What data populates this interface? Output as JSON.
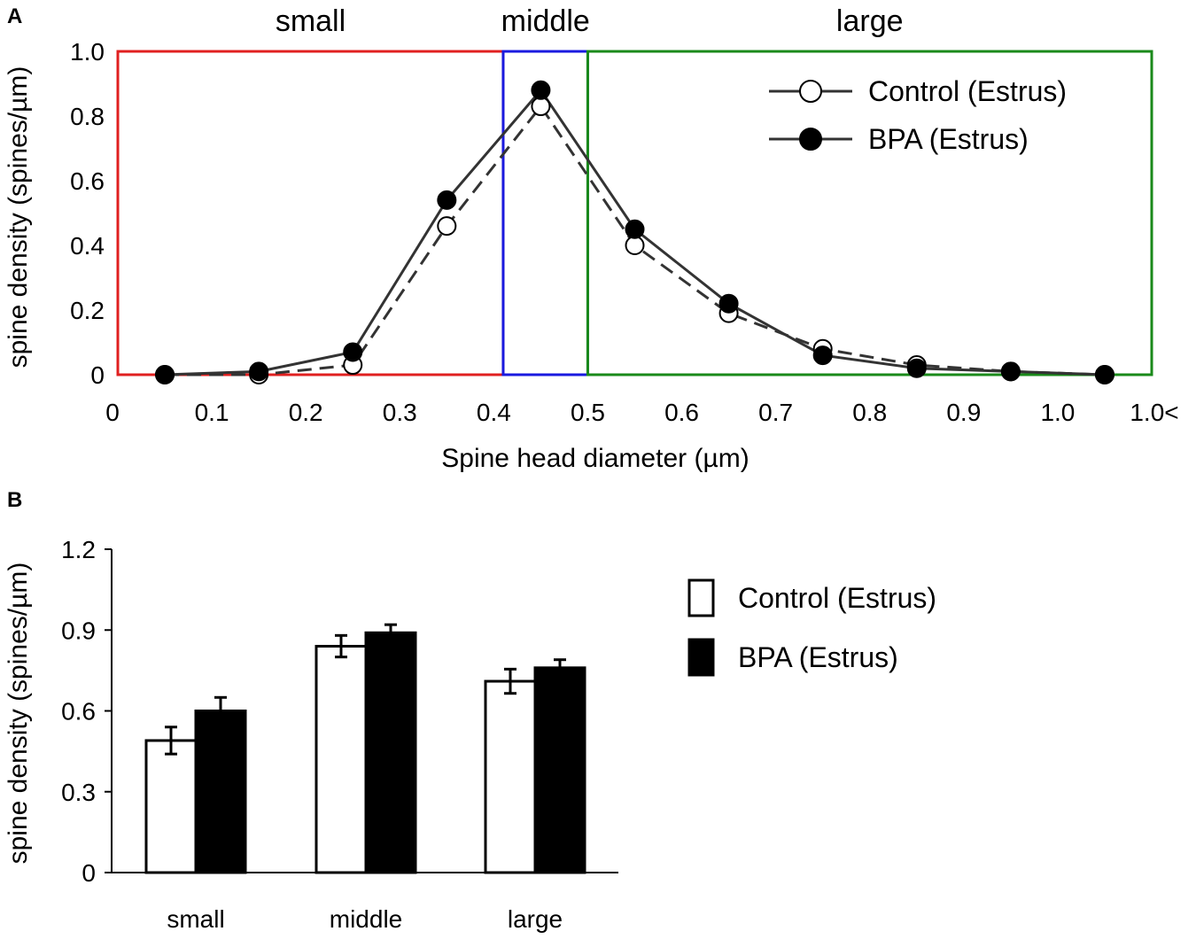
{
  "figure": {
    "panels": [
      "A",
      "B"
    ]
  },
  "chart_data": [
    {
      "type": "line",
      "panel": "A",
      "xlabel": "Spine head diameter (µm)",
      "ylabel": "spine density (spines/µm)",
      "ylim": [
        0,
        1.0
      ],
      "xlim": [
        0,
        1.1
      ],
      "x_tick_labels": [
        "0",
        "0.1",
        "0.2",
        "0.3",
        "0.4",
        "0.5",
        "0.6",
        "0.7",
        "0.8",
        "0.9",
        "1.0",
        "1.0<"
      ],
      "y_tick_labels": [
        "0",
        "0.2",
        "0.4",
        "0.6",
        "0.8",
        "1.0"
      ],
      "y_ticks": [
        0,
        0.2,
        0.4,
        0.6,
        0.8,
        1.0
      ],
      "x": [
        0.05,
        0.15,
        0.25,
        0.35,
        0.45,
        0.55,
        0.65,
        0.75,
        0.85,
        0.95,
        1.05
      ],
      "series": [
        {
          "name": "Control (Estrus)",
          "marker": "open-circle",
          "line": "dashed",
          "values": [
            0.0,
            0.0,
            0.03,
            0.46,
            0.83,
            0.4,
            0.19,
            0.08,
            0.03,
            0.01,
            0.0
          ]
        },
        {
          "name": "BPA (Estrus)",
          "marker": "filled-circle",
          "line": "solid",
          "values": [
            0.0,
            0.01,
            0.07,
            0.54,
            0.88,
            0.45,
            0.22,
            0.06,
            0.02,
            0.01,
            0.0
          ]
        }
      ],
      "regions": [
        {
          "label": "small",
          "from": 0.0,
          "to": 0.41,
          "color": "#e02020"
        },
        {
          "label": "middle",
          "from": 0.41,
          "to": 0.5,
          "color": "#1a1adf"
        },
        {
          "label": "large",
          "from": 0.5,
          "to": 1.1,
          "color": "#1a8a1a"
        }
      ],
      "legend_position": "top-right"
    },
    {
      "type": "bar",
      "panel": "B",
      "ylabel": "spine density (spines/µm)",
      "ylim": [
        0,
        1.2
      ],
      "y_tick_labels": [
        "0",
        "0.3",
        "0.6",
        "0.9",
        "1.2"
      ],
      "y_ticks": [
        0,
        0.3,
        0.6,
        0.9,
        1.2
      ],
      "categories": [
        "small",
        "middle",
        "large"
      ],
      "series": [
        {
          "name": "Control (Estrus)",
          "fill": "#ffffff",
          "values": [
            0.49,
            0.84,
            0.71
          ],
          "errors": [
            0.05,
            0.04,
            0.045
          ]
        },
        {
          "name": "BPA (Estrus)",
          "fill": "#000000",
          "values": [
            0.6,
            0.89,
            0.76
          ],
          "errors": [
            0.05,
            0.03,
            0.03
          ]
        }
      ],
      "legend_position": "right"
    }
  ]
}
